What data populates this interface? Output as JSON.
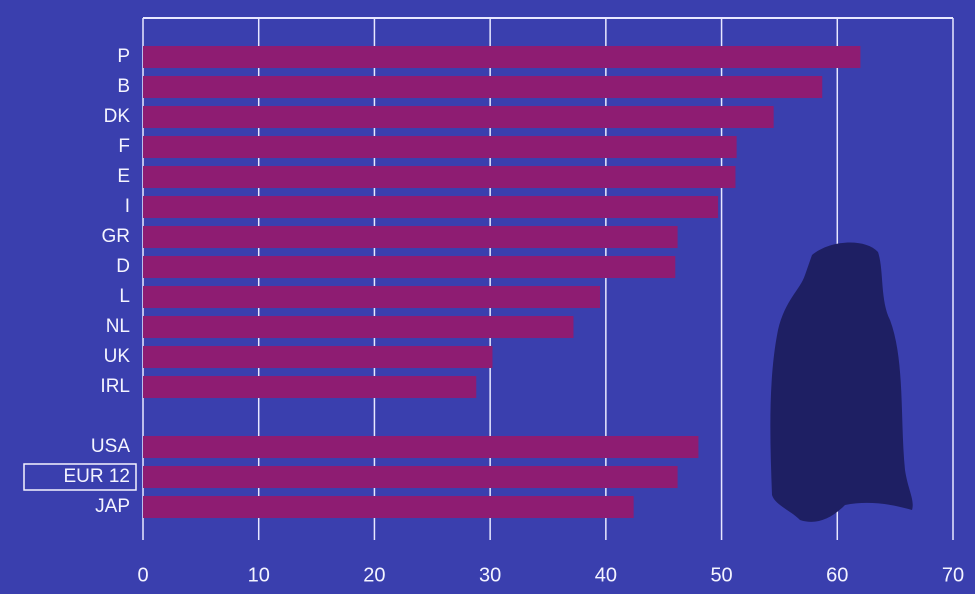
{
  "chart_data": {
    "type": "bar",
    "orientation": "horizontal",
    "categories": [
      "P",
      "B",
      "DK",
      "F",
      "E",
      "I",
      "GR",
      "D",
      "L",
      "NL",
      "UK",
      "IRL",
      null,
      "USA",
      "EUR 12",
      "JAP"
    ],
    "values": [
      62,
      58.7,
      54.5,
      51.3,
      51.2,
      49.7,
      46.2,
      46,
      39.5,
      37.2,
      30.2,
      28.8,
      null,
      48,
      46.2,
      42.4
    ],
    "color": "#8e1c72",
    "xlim": [
      0,
      70
    ],
    "xticks": [
      0,
      10,
      20,
      30,
      40,
      50,
      60,
      70
    ],
    "grid": true
  }
}
